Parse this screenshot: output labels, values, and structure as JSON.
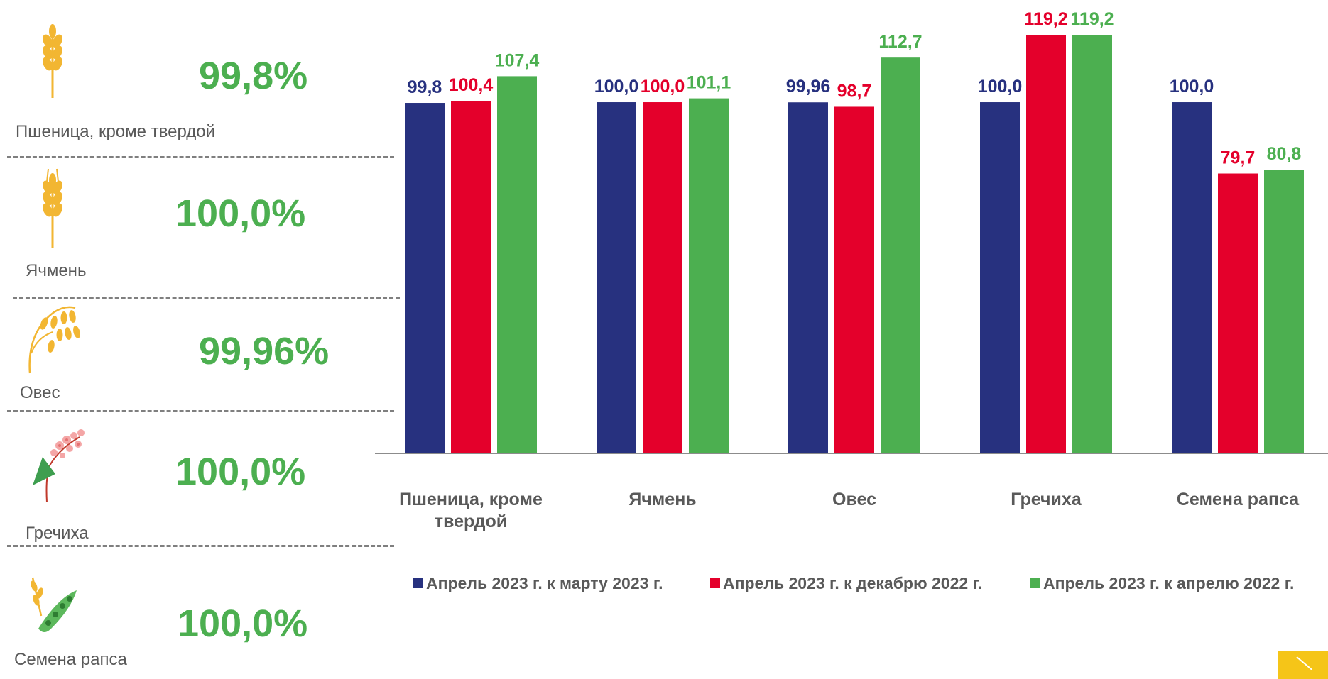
{
  "crops": [
    {
      "name": "Пшеница, кроме твердой",
      "percent": "99,8%",
      "icon": "wheat-icon"
    },
    {
      "name": "Ячмень",
      "percent": "100,0%",
      "icon": "barley-icon"
    },
    {
      "name": "Овес",
      "percent": "99,96%",
      "icon": "oat-icon"
    },
    {
      "name": "Гречиха",
      "percent": "100,0%",
      "icon": "buckwheat-icon"
    },
    {
      "name": "Семена рапса",
      "percent": "100,0%",
      "icon": "rapeseed-icon"
    }
  ],
  "colors": {
    "accent_green": "#4caf50",
    "icon_gold": "#f2b632",
    "series": [
      "#27317f",
      "#e4002b",
      "#4caf50"
    ]
  },
  "chart_data": {
    "type": "bar",
    "categories": [
      "Пшеница, кроме твердой",
      "Ячмень",
      "Овес",
      "Гречиха",
      "Семена рапса"
    ],
    "category_lines": [
      [
        "Пшеница, кроме",
        "твердой"
      ],
      [
        "Ячмень"
      ],
      [
        "Овес"
      ],
      [
        "Гречиха"
      ],
      [
        "Семена рапса"
      ]
    ],
    "series": [
      {
        "name": "Апрель 2023 г. к марту 2023 г.",
        "color": "#27317f",
        "values": [
          99.8,
          100.0,
          99.96,
          100.0,
          100.0
        ],
        "labels": [
          "99,8",
          "100,0",
          "99,96",
          "100,0",
          "100,0"
        ]
      },
      {
        "name": "Апрель 2023 г. к декабрю 2022 г.",
        "color": "#e4002b",
        "values": [
          100.4,
          100.0,
          98.7,
          119.2,
          79.7
        ],
        "labels": [
          "100,4",
          "100,0",
          "98,7",
          "119,2",
          "79,7"
        ]
      },
      {
        "name": "Апрель 2023 г. к апрелю 2022 г.",
        "color": "#4caf50",
        "values": [
          107.4,
          101.1,
          112.7,
          119.2,
          80.8
        ],
        "labels": [
          "107,4",
          "101,1",
          "112,7",
          "119,2",
          "80,8"
        ]
      }
    ],
    "ylim": [
      0,
      119.2
    ],
    "legend_position": "bottom",
    "grid": false
  }
}
